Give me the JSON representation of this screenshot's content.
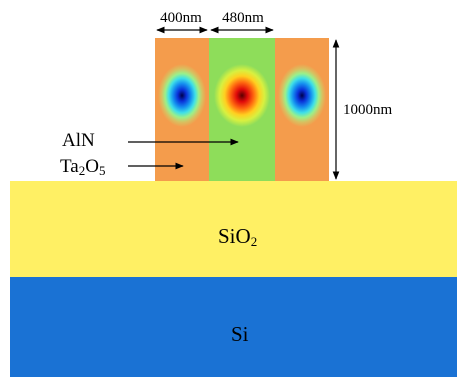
{
  "dimensions": {
    "ta2o5_width": "400nm",
    "aln_width": "480nm",
    "height": "1000nm"
  },
  "labels": {
    "aln": "AlN",
    "ta2o5_main1": "Ta",
    "ta2o5_sub1": "2",
    "ta2o5_main2": "O",
    "ta2o5_sub2": "5",
    "sio2_main": "SiO",
    "sio2_sub": "2",
    "si": "Si"
  },
  "colors": {
    "ta2o5": "#F49C4C",
    "aln": "#8EDD5A",
    "sio2": "#FFF064",
    "si": "#1A72D4",
    "field_center": "#E21010",
    "field_side": "#1A40D0"
  }
}
